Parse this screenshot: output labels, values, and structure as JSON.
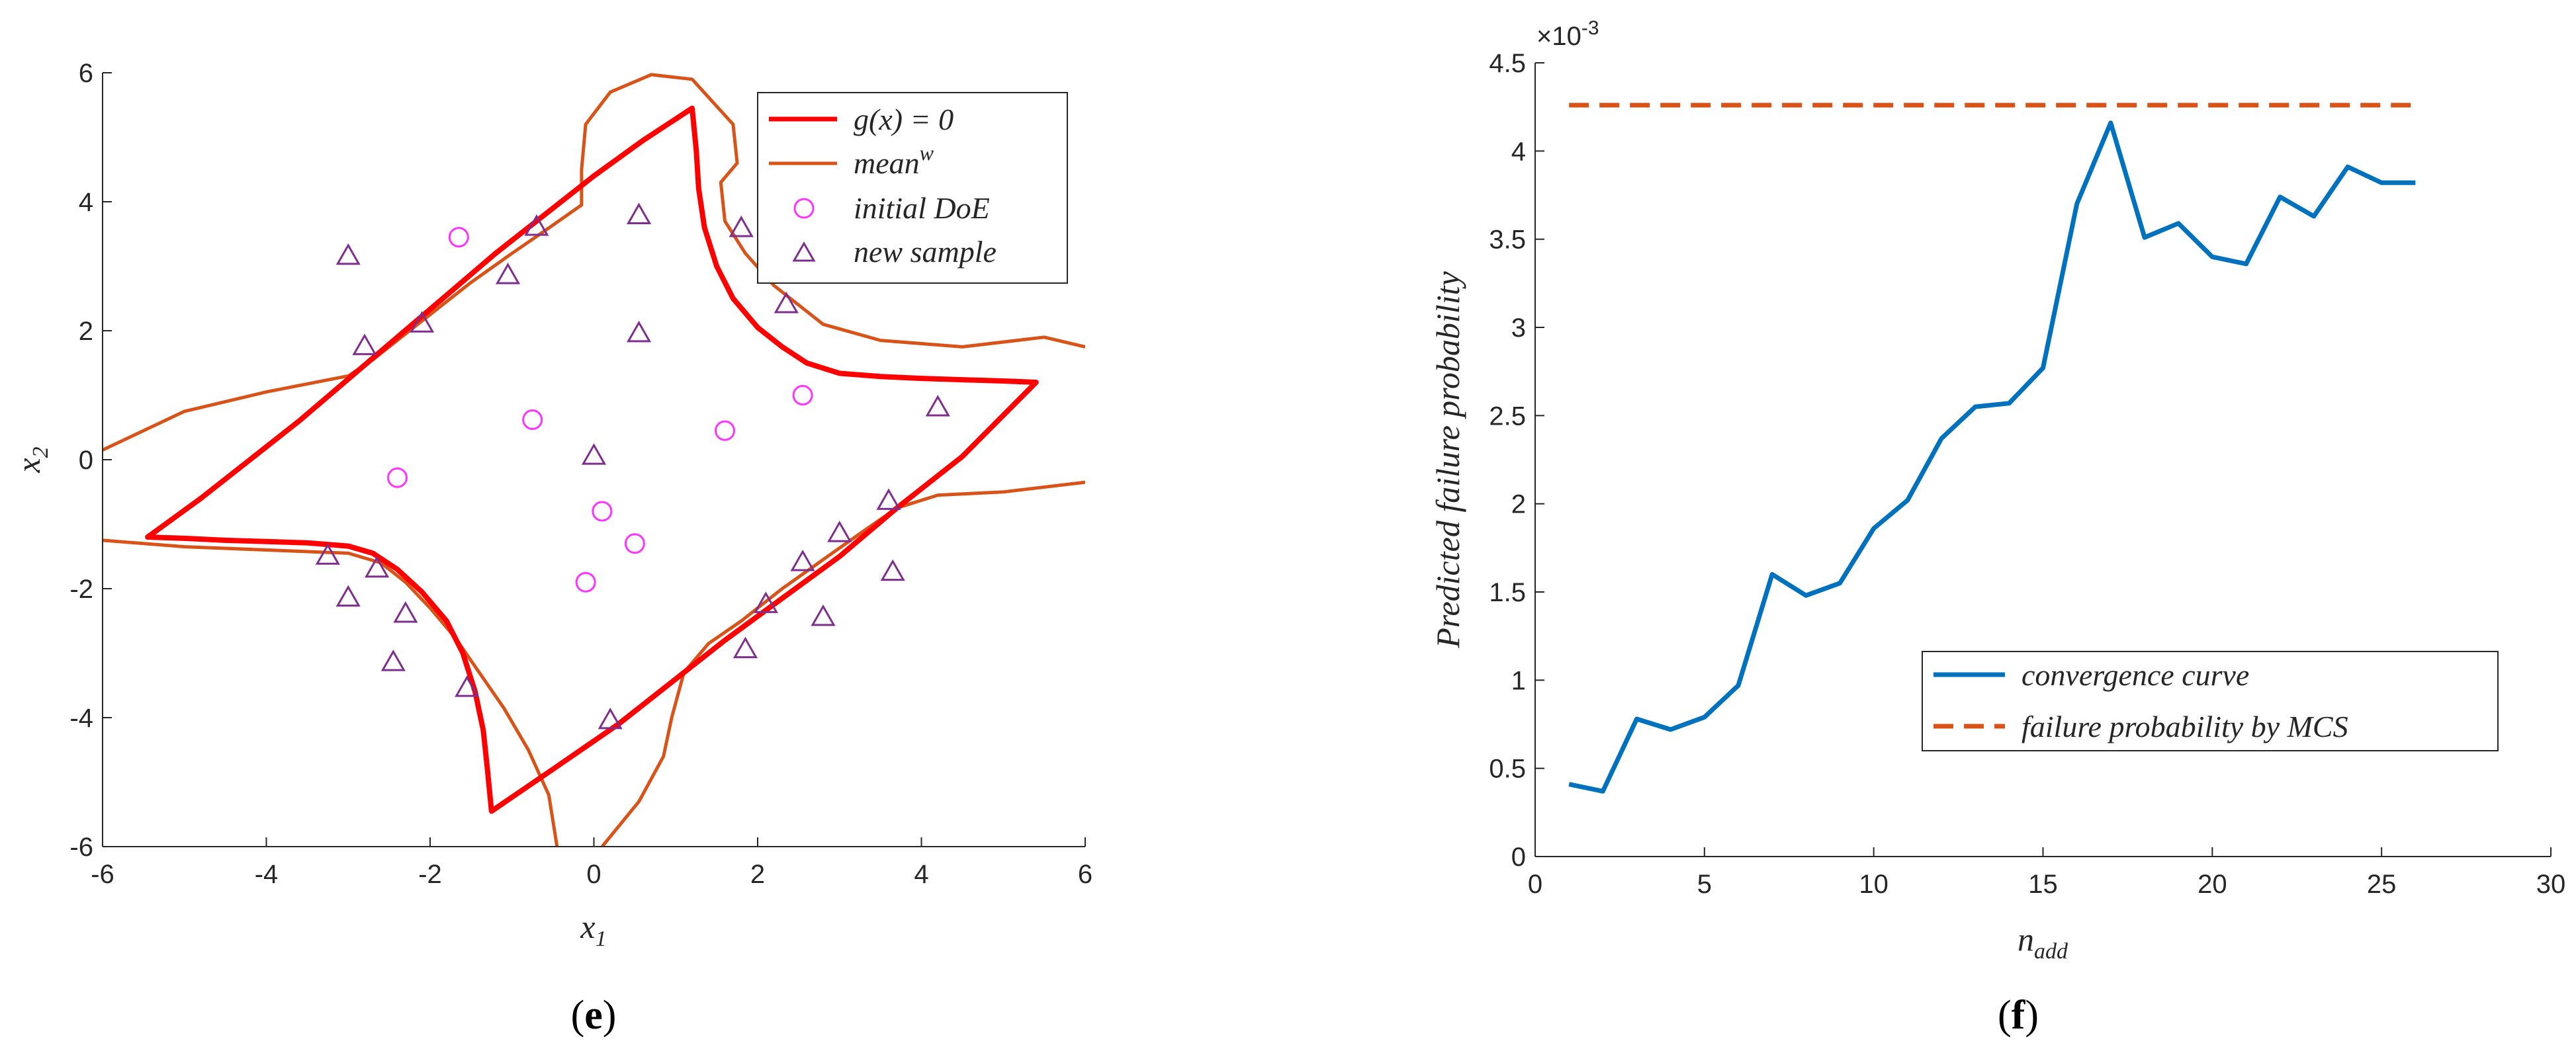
{
  "colors": {
    "limit_state": "#ff0000",
    "mean_w": "#d95319",
    "initial_doe": "#ff33ff",
    "new_sample": "#7e2f8e",
    "convergence": "#0072bd",
    "mcs": "#d95319"
  },
  "chart_data": [
    {
      "type": "scatter",
      "panel_label": "e",
      "xlabel_base": "x",
      "xlabel_sub": "1",
      "ylabel_base": "x",
      "ylabel_sub": "2",
      "xlim": [
        -6,
        6
      ],
      "ylim": [
        -6,
        6
      ],
      "xticks": [
        -6,
        -4,
        -2,
        0,
        2,
        4,
        6
      ],
      "yticks": [
        -6,
        -4,
        -2,
        0,
        2,
        4,
        6
      ],
      "grid": false,
      "legend_position": "top-right",
      "legend": [
        {
          "key": "limit",
          "label": "g(x) = 0",
          "marker": "line"
        },
        {
          "key": "mean",
          "label_base": "mean",
          "label_sup": "w",
          "marker": "line"
        },
        {
          "key": "initial",
          "label": "initial DoE",
          "marker": "circle"
        },
        {
          "key": "new",
          "label": "new sample",
          "marker": "triangle"
        }
      ],
      "limit_state_curve": [
        [
          -5.45,
          -1.2
        ],
        [
          -5.0,
          -1.22
        ],
        [
          -4.5,
          -1.25
        ],
        [
          -4.0,
          -1.27
        ],
        [
          -3.5,
          -1.29
        ],
        [
          -3.0,
          -1.34
        ],
        [
          -2.7,
          -1.45
        ],
        [
          -2.4,
          -1.7
        ],
        [
          -2.1,
          -2.05
        ],
        [
          -1.8,
          -2.5
        ],
        [
          -1.6,
          -3.0
        ],
        [
          -1.45,
          -3.6
        ],
        [
          -1.35,
          -4.2
        ],
        [
          -1.3,
          -4.8
        ],
        [
          -1.25,
          -5.45
        ],
        [
          -0.5,
          -4.8
        ],
        [
          0.3,
          -4.1
        ],
        [
          1.0,
          -3.4
        ],
        [
          1.6,
          -2.8
        ],
        [
          2.3,
          -2.15
        ],
        [
          3.0,
          -1.5
        ],
        [
          3.7,
          -0.75
        ],
        [
          4.5,
          0.05
        ],
        [
          5.4,
          1.2
        ],
        [
          5.0,
          1.22
        ],
        [
          4.5,
          1.24
        ],
        [
          4.0,
          1.26
        ],
        [
          3.5,
          1.29
        ],
        [
          3.0,
          1.34
        ],
        [
          2.6,
          1.5
        ],
        [
          2.3,
          1.75
        ],
        [
          2.0,
          2.05
        ],
        [
          1.7,
          2.5
        ],
        [
          1.5,
          3.0
        ],
        [
          1.35,
          3.6
        ],
        [
          1.28,
          4.2
        ],
        [
          1.25,
          4.8
        ],
        [
          1.2,
          5.45
        ],
        [
          0.6,
          4.95
        ],
        [
          0.0,
          4.4
        ],
        [
          -0.6,
          3.8
        ],
        [
          -1.2,
          3.2
        ],
        [
          -1.8,
          2.55
        ],
        [
          -2.4,
          1.9
        ],
        [
          -3.0,
          1.25
        ],
        [
          -3.6,
          0.6
        ],
        [
          -4.2,
          0.0
        ],
        [
          -4.8,
          -0.6
        ],
        [
          -5.45,
          -1.2
        ]
      ],
      "mean_w_curves": [
        [
          [
            -6.0,
            0.15
          ],
          [
            -5.0,
            0.75
          ],
          [
            -4.0,
            1.05
          ],
          [
            -3.0,
            1.3
          ],
          [
            -2.7,
            1.55
          ],
          [
            -2.4,
            1.85
          ],
          [
            -2.0,
            2.25
          ],
          [
            -1.5,
            2.75
          ],
          [
            -1.0,
            3.2
          ],
          [
            -0.6,
            3.55
          ],
          [
            -0.15,
            3.95
          ],
          [
            -0.15,
            4.5
          ],
          [
            -0.1,
            5.2
          ],
          [
            0.2,
            5.7
          ],
          [
            0.7,
            5.97
          ],
          [
            1.2,
            5.9
          ],
          [
            1.7,
            5.2
          ],
          [
            1.75,
            4.6
          ],
          [
            1.55,
            4.3
          ],
          [
            1.6,
            3.7
          ],
          [
            1.85,
            3.2
          ],
          [
            2.2,
            2.7
          ],
          [
            2.8,
            2.1
          ],
          [
            3.5,
            1.85
          ],
          [
            4.5,
            1.75
          ],
          [
            5.5,
            1.9
          ],
          [
            6.0,
            1.75
          ]
        ],
        [
          [
            -6.0,
            -1.25
          ],
          [
            -5.0,
            -1.35
          ],
          [
            -4.0,
            -1.4
          ],
          [
            -3.0,
            -1.45
          ],
          [
            -2.6,
            -1.6
          ],
          [
            -2.3,
            -1.9
          ],
          [
            -2.0,
            -2.3
          ],
          [
            -1.7,
            -2.75
          ],
          [
            -1.4,
            -3.3
          ],
          [
            -1.1,
            -3.85
          ],
          [
            -0.8,
            -4.5
          ],
          [
            -0.55,
            -5.2
          ],
          [
            -0.45,
            -6.0
          ]
        ],
        [
          [
            0.1,
            -6.0
          ],
          [
            0.55,
            -5.3
          ],
          [
            0.85,
            -4.6
          ],
          [
            0.95,
            -4.0
          ],
          [
            1.1,
            -3.3
          ],
          [
            1.4,
            -2.85
          ],
          [
            1.8,
            -2.5
          ],
          [
            2.3,
            -2.0
          ],
          [
            2.8,
            -1.55
          ],
          [
            3.3,
            -1.1
          ],
          [
            3.7,
            -0.75
          ],
          [
            4.2,
            -0.55
          ],
          [
            5.0,
            -0.5
          ],
          [
            6.0,
            -0.35
          ]
        ]
      ],
      "initial_doe": [
        [
          -1.65,
          3.45
        ],
        [
          -0.75,
          0.62
        ],
        [
          -2.4,
          -0.28
        ],
        [
          0.1,
          -0.8
        ],
        [
          0.5,
          -1.3
        ],
        [
          -0.1,
          -1.9
        ],
        [
          1.6,
          0.45
        ],
        [
          2.55,
          1.0
        ]
      ],
      "new_samples": [
        [
          -3.0,
          3.15
        ],
        [
          -0.7,
          3.6
        ],
        [
          -1.05,
          2.85
        ],
        [
          0.55,
          3.78
        ],
        [
          1.8,
          3.58
        ],
        [
          2.35,
          2.4
        ],
        [
          0.55,
          1.95
        ],
        [
          -2.8,
          1.75
        ],
        [
          -2.1,
          2.1
        ],
        [
          0.0,
          0.05
        ],
        [
          4.2,
          0.8
        ],
        [
          3.6,
          -0.65
        ],
        [
          3.0,
          -1.15
        ],
        [
          2.55,
          -1.6
        ],
        [
          3.65,
          -1.75
        ],
        [
          -3.25,
          -1.5
        ],
        [
          -2.65,
          -1.7
        ],
        [
          -3.0,
          -2.15
        ],
        [
          -2.3,
          -2.4
        ],
        [
          2.1,
          -2.25
        ],
        [
          2.8,
          -2.45
        ],
        [
          1.85,
          -2.95
        ],
        [
          -2.45,
          -3.15
        ],
        [
          -1.55,
          -3.55
        ],
        [
          0.2,
          -4.05
        ]
      ]
    },
    {
      "type": "line",
      "panel_label": "f",
      "xlabel_base": "n",
      "xlabel_sub": "add",
      "ylabel": "Predicted failure probability",
      "exponent_label": "×10",
      "exponent_power": "-3",
      "xlim": [
        0,
        30
      ],
      "ylim": [
        0,
        4.5
      ],
      "xticks": [
        0,
        5,
        10,
        15,
        20,
        25,
        30
      ],
      "yticks": [
        0,
        0.5,
        1,
        1.5,
        2,
        2.5,
        3,
        3.5,
        4,
        4.5
      ],
      "grid": false,
      "legend_position": "lower-right",
      "legend": [
        {
          "key": "conv",
          "label": "convergence curve",
          "marker": "solid"
        },
        {
          "key": "mcs",
          "label": "failure probability by MCS",
          "marker": "dashed"
        }
      ],
      "series": [
        {
          "key": "conv",
          "x": [
            1,
            2,
            3,
            4,
            5,
            6,
            7,
            8,
            9,
            10,
            11,
            12,
            13,
            14,
            15,
            16,
            17,
            18,
            19,
            20,
            21,
            22,
            23,
            24,
            25,
            26
          ],
          "values": [
            0.41,
            0.37,
            0.78,
            0.72,
            0.79,
            0.97,
            1.6,
            1.48,
            1.55,
            1.86,
            2.02,
            2.37,
            2.55,
            2.57,
            2.77,
            3.7,
            4.16,
            3.51,
            3.59,
            3.4,
            3.36,
            3.74,
            3.63,
            3.91,
            3.82,
            3.82
          ]
        },
        {
          "key": "mcs",
          "x": [
            1,
            26
          ],
          "values": [
            4.26,
            4.26
          ]
        }
      ]
    }
  ]
}
